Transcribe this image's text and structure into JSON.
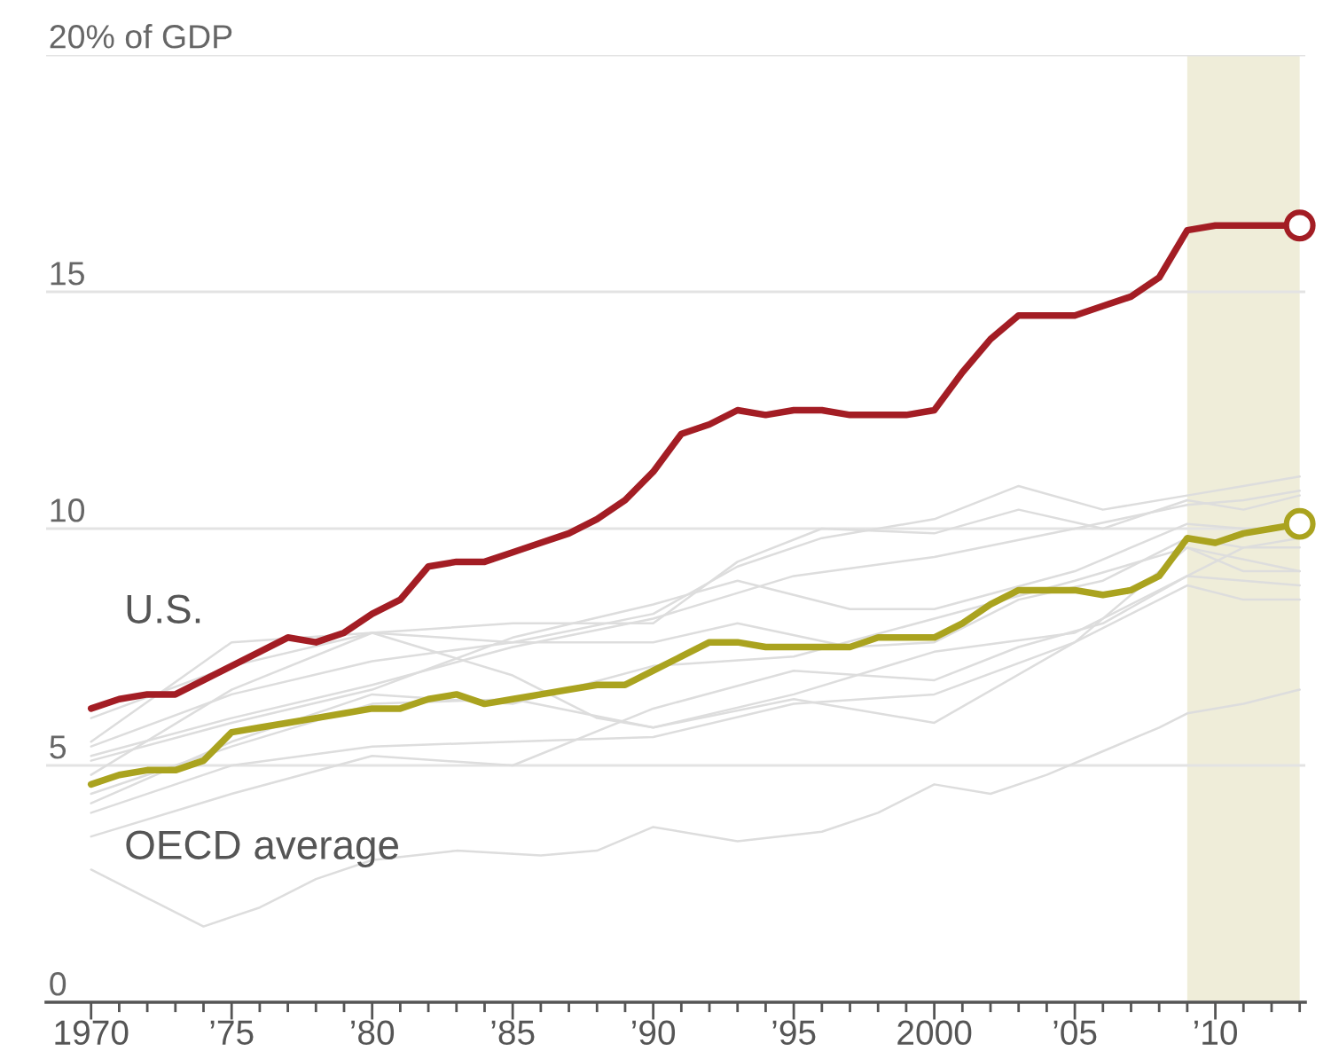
{
  "chart_data": {
    "type": "line",
    "x": [
      1970,
      1971,
      1972,
      1973,
      1974,
      1975,
      1976,
      1977,
      1978,
      1979,
      1980,
      1981,
      1982,
      1983,
      1984,
      1985,
      1986,
      1987,
      1988,
      1989,
      1990,
      1991,
      1992,
      1993,
      1994,
      1995,
      1996,
      1997,
      1998,
      1999,
      2000,
      2001,
      2002,
      2003,
      2004,
      2005,
      2006,
      2007,
      2008,
      2009,
      2010,
      2011,
      2012,
      2013
    ],
    "series": [
      {
        "color": "#dddddd",
        "x": [
          1970,
          1972,
          1974,
          1976,
          1978,
          1980,
          1983,
          1986,
          1988,
          1990,
          1993,
          1996,
          1998,
          2000,
          2002,
          2004,
          2006,
          2008,
          2009,
          2011,
          2013
        ],
        "values": [
          2.8,
          2.2,
          1.6,
          2.0,
          2.6,
          3.0,
          3.2,
          3.1,
          3.2,
          3.7,
          3.4,
          3.6,
          4.0,
          4.6,
          4.4,
          4.8,
          5.3,
          5.8,
          6.1,
          6.3,
          6.6
        ]
      },
      {
        "color": "#dddddd",
        "x": [
          1970,
          1975,
          1980,
          1985,
          1990,
          1993,
          1996,
          2000,
          2003,
          2006,
          2009,
          2011,
          2013
        ],
        "values": [
          5.4,
          6.5,
          7.2,
          7.6,
          8.2,
          9.2,
          9.8,
          10.2,
          10.9,
          10.4,
          10.7,
          10.9,
          11.1
        ]
      },
      {
        "color": "#dddddd",
        "x": [
          1970,
          1975,
          1980,
          1985,
          1990,
          1993,
          1996,
          2000,
          2003,
          2006,
          2009,
          2011,
          2013
        ],
        "values": [
          5.5,
          7.6,
          7.8,
          8.0,
          8.0,
          9.3,
          10.0,
          9.9,
          10.4,
          10.0,
          10.6,
          10.4,
          10.7
        ]
      },
      {
        "color": "#dddddd",
        "x": [
          1970,
          1975,
          1980,
          1985,
          1990,
          1995,
          2000,
          2005,
          2009,
          2011,
          2013
        ],
        "values": [
          5.2,
          6.0,
          6.7,
          7.5,
          8.1,
          9.0,
          9.4,
          10.0,
          10.5,
          10.6,
          10.8
        ]
      },
      {
        "color": "#dddddd",
        "x": [
          1970,
          1975,
          1980,
          1985,
          1990,
          1993,
          1997,
          2000,
          2003,
          2006,
          2009,
          2011,
          2013
        ],
        "values": [
          6.0,
          7.1,
          7.8,
          7.6,
          7.6,
          8.0,
          7.5,
          7.6,
          8.5,
          8.9,
          9.8,
          9.6,
          9.8
        ]
      },
      {
        "color": "#dddddd",
        "x": [
          1970,
          1975,
          1980,
          1985,
          1990,
          1993,
          1997,
          2000,
          2005,
          2009,
          2011,
          2013
        ],
        "values": [
          5.1,
          5.9,
          6.6,
          7.7,
          8.4,
          8.9,
          8.3,
          8.3,
          9.1,
          10.1,
          10.0,
          10.0
        ]
      },
      {
        "color": "#dddddd",
        "x": [
          1970,
          1975,
          1980,
          1985,
          1990,
          1995,
          2000,
          2005,
          2009,
          2011,
          2013
        ],
        "values": [
          4.2,
          5.5,
          6.5,
          6.3,
          7.1,
          7.3,
          8.1,
          8.9,
          9.6,
          9.1,
          9.1
        ]
      },
      {
        "color": "#dddddd",
        "x": [
          1970,
          1975,
          1980,
          1985,
          1990,
          1995,
          2000,
          2005,
          2009,
          2011,
          2013
        ],
        "values": [
          4.4,
          5.4,
          6.3,
          6.4,
          5.8,
          6.5,
          7.4,
          7.8,
          9.0,
          9.6,
          9.6
        ]
      },
      {
        "color": "#dddddd",
        "x": [
          1970,
          1975,
          1980,
          1985,
          1990,
          1995,
          2000,
          2005,
          2009,
          2011,
          2013
        ],
        "values": [
          4.0,
          5.0,
          5.4,
          5.5,
          5.6,
          6.3,
          6.5,
          7.6,
          8.8,
          8.5,
          8.5
        ]
      },
      {
        "color": "#dddddd",
        "x": [
          1970,
          1975,
          1980,
          1985,
          1990,
          1995,
          2000,
          2003,
          2006,
          2009,
          2013
        ],
        "values": [
          3.5,
          4.4,
          5.2,
          5.0,
          6.2,
          7.0,
          6.8,
          7.5,
          8.0,
          9.0,
          8.8
        ]
      },
      {
        "color": "#dddddd",
        "x": [
          1970,
          1975,
          1980,
          1985,
          1988,
          1990,
          1995,
          2000,
          2005,
          2009,
          2013
        ],
        "values": [
          4.8,
          6.6,
          7.8,
          6.9,
          6.0,
          5.8,
          6.4,
          5.9,
          7.6,
          9.6,
          9.1
        ]
      },
      {
        "name": "OECD average",
        "color": "#aaa31f",
        "values": [
          4.6,
          4.8,
          4.9,
          4.9,
          5.1,
          5.7,
          5.8,
          5.9,
          6.0,
          6.1,
          6.2,
          6.2,
          6.4,
          6.5,
          6.3,
          6.4,
          6.5,
          6.6,
          6.7,
          6.7,
          7.0,
          7.3,
          7.6,
          7.6,
          7.5,
          7.5,
          7.5,
          7.5,
          7.7,
          7.7,
          7.7,
          8.0,
          8.4,
          8.7,
          8.7,
          8.7,
          8.6,
          8.7,
          9.0,
          9.8,
          9.7,
          9.9,
          10.0,
          10.1
        ]
      },
      {
        "name": "U.S.",
        "color": "#a31d24",
        "values": [
          6.2,
          6.4,
          6.5,
          6.5,
          6.8,
          7.1,
          7.4,
          7.7,
          7.6,
          7.8,
          8.2,
          8.5,
          9.2,
          9.3,
          9.3,
          9.5,
          9.7,
          9.9,
          10.2,
          10.6,
          11.2,
          12.0,
          12.2,
          12.5,
          12.4,
          12.5,
          12.5,
          12.4,
          12.4,
          12.4,
          12.5,
          13.3,
          14.0,
          14.5,
          14.5,
          14.5,
          14.7,
          14.9,
          15.3,
          16.3,
          16.4,
          16.4,
          16.4,
          16.4
        ]
      },
      {
        "type": "scatter",
        "marker": "circle",
        "color": "#aaa31f",
        "x": [
          2013
        ],
        "values": [
          10.1
        ]
      },
      {
        "type": "scatter",
        "marker": "circle",
        "color": "#a31d24",
        "x": [
          2013
        ],
        "values": [
          16.4
        ]
      }
    ],
    "xlim": [
      1968.4,
      2013.2
    ],
    "ylim": [
      0,
      20
    ],
    "xticks": [
      1970,
      {
        "value": 1971,
        "label": null
      },
      {
        "value": 1972,
        "label": null
      },
      {
        "value": 1973,
        "label": null
      },
      {
        "value": 1974,
        "label": null
      },
      {
        "value": 1975,
        "label": "’75"
      },
      {
        "value": 1976,
        "label": null
      },
      {
        "value": 1977,
        "label": null
      },
      {
        "value": 1978,
        "label": null
      },
      {
        "value": 1979,
        "label": null
      },
      {
        "value": 1980,
        "label": "’80"
      },
      {
        "value": 1981,
        "label": null
      },
      {
        "value": 1982,
        "label": null
      },
      {
        "value": 1983,
        "label": null
      },
      {
        "value": 1984,
        "label": null
      },
      {
        "value": 1985,
        "label": "’85"
      },
      {
        "value": 1986,
        "label": null
      },
      {
        "value": 1987,
        "label": null
      },
      {
        "value": 1988,
        "label": null
      },
      {
        "value": 1989,
        "label": null
      },
      {
        "value": 1990,
        "label": "’90"
      },
      {
        "value": 1991,
        "label": null
      },
      {
        "value": 1992,
        "label": null
      },
      {
        "value": 1993,
        "label": null
      },
      {
        "value": 1994,
        "label": null
      },
      {
        "value": 1995,
        "label": "’95"
      },
      {
        "value": 1996,
        "label": null
      },
      {
        "value": 1997,
        "label": null
      },
      {
        "value": 1998,
        "label": null
      },
      {
        "value": 1999,
        "label": null
      },
      2000,
      {
        "value": 2001,
        "label": null
      },
      {
        "value": 2002,
        "label": null
      },
      {
        "value": 2003,
        "label": null
      },
      {
        "value": 2004,
        "label": null
      },
      {
        "value": 2005,
        "label": "’05"
      },
      {
        "value": 2006,
        "label": null
      },
      {
        "value": 2007,
        "label": null
      },
      {
        "value": 2008,
        "label": null
      },
      {
        "value": 2009,
        "label": null
      },
      {
        "value": 2010,
        "label": "’10"
      },
      {
        "value": 2011,
        "label": null
      },
      {
        "value": 2012,
        "label": null
      },
      {
        "value": 2013,
        "label": null
      }
    ],
    "yticks": [
      0,
      5,
      10,
      15,
      {
        "value": 20,
        "label": "20% of GDP"
      }
    ],
    "grid": "y",
    "legend": false,
    "line_style": "solid",
    "bands": [
      {
        "axis": "x",
        "from": 2009,
        "to": 2013,
        "color": "#efedd9"
      }
    ]
  }
}
